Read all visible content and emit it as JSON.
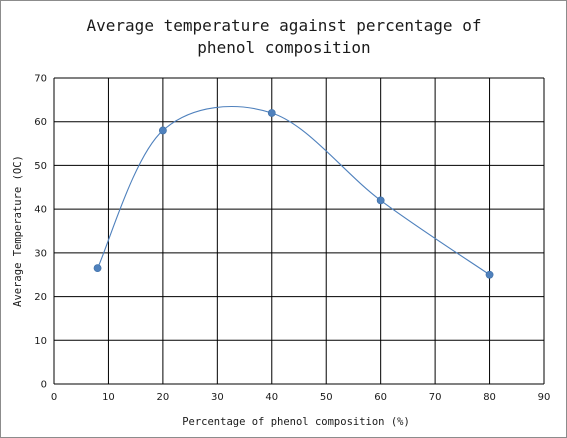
{
  "chart_data": {
    "type": "scatter",
    "title_lines": [
      "Average temperature against percentage of",
      "phenol composition"
    ],
    "xlabel": "Percentage of phenol composition (%)",
    "ylabel": "Average Temperature (OC)",
    "xlim": [
      0,
      90
    ],
    "ylim": [
      0,
      70
    ],
    "x_ticks": [
      0,
      10,
      20,
      30,
      40,
      50,
      60,
      70,
      80,
      90
    ],
    "y_ticks": [
      0,
      10,
      20,
      30,
      40,
      50,
      60,
      70
    ],
    "grid": true,
    "smooth_line": true,
    "legend": "none",
    "series": [
      {
        "x": [
          8,
          20,
          40,
          60,
          80
        ],
        "y": [
          26.5,
          58,
          62,
          42,
          25
        ]
      }
    ],
    "colors": {
      "marker": "#4f81bd",
      "line": "#4f81bd",
      "grid": "#000000"
    }
  }
}
